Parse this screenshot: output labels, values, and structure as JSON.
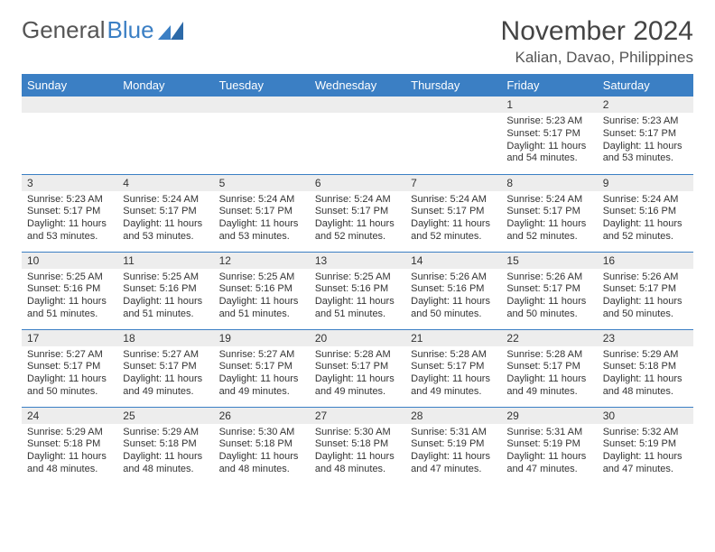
{
  "logo": {
    "text1": "General",
    "text2": "Blue"
  },
  "title": "November 2024",
  "location": "Kalian, Davao, Philippines",
  "colors": {
    "header_bg": "#3b7fc4",
    "header_fg": "#ffffff",
    "daynum_bg": "#ededed",
    "border": "#3b7fc4",
    "text": "#333333"
  },
  "font": {
    "body_size": 11,
    "header_size": 13,
    "title_size": 30,
    "subtitle_size": 17
  },
  "day_headers": [
    "Sunday",
    "Monday",
    "Tuesday",
    "Wednesday",
    "Thursday",
    "Friday",
    "Saturday"
  ],
  "weeks": [
    [
      {
        "num": "",
        "sunrise": "",
        "sunset": "",
        "daylight": ""
      },
      {
        "num": "",
        "sunrise": "",
        "sunset": "",
        "daylight": ""
      },
      {
        "num": "",
        "sunrise": "",
        "sunset": "",
        "daylight": ""
      },
      {
        "num": "",
        "sunrise": "",
        "sunset": "",
        "daylight": ""
      },
      {
        "num": "",
        "sunrise": "",
        "sunset": "",
        "daylight": ""
      },
      {
        "num": "1",
        "sunrise": "Sunrise: 5:23 AM",
        "sunset": "Sunset: 5:17 PM",
        "daylight": "Daylight: 11 hours and 54 minutes."
      },
      {
        "num": "2",
        "sunrise": "Sunrise: 5:23 AM",
        "sunset": "Sunset: 5:17 PM",
        "daylight": "Daylight: 11 hours and 53 minutes."
      }
    ],
    [
      {
        "num": "3",
        "sunrise": "Sunrise: 5:23 AM",
        "sunset": "Sunset: 5:17 PM",
        "daylight": "Daylight: 11 hours and 53 minutes."
      },
      {
        "num": "4",
        "sunrise": "Sunrise: 5:24 AM",
        "sunset": "Sunset: 5:17 PM",
        "daylight": "Daylight: 11 hours and 53 minutes."
      },
      {
        "num": "5",
        "sunrise": "Sunrise: 5:24 AM",
        "sunset": "Sunset: 5:17 PM",
        "daylight": "Daylight: 11 hours and 53 minutes."
      },
      {
        "num": "6",
        "sunrise": "Sunrise: 5:24 AM",
        "sunset": "Sunset: 5:17 PM",
        "daylight": "Daylight: 11 hours and 52 minutes."
      },
      {
        "num": "7",
        "sunrise": "Sunrise: 5:24 AM",
        "sunset": "Sunset: 5:17 PM",
        "daylight": "Daylight: 11 hours and 52 minutes."
      },
      {
        "num": "8",
        "sunrise": "Sunrise: 5:24 AM",
        "sunset": "Sunset: 5:17 PM",
        "daylight": "Daylight: 11 hours and 52 minutes."
      },
      {
        "num": "9",
        "sunrise": "Sunrise: 5:24 AM",
        "sunset": "Sunset: 5:16 PM",
        "daylight": "Daylight: 11 hours and 52 minutes."
      }
    ],
    [
      {
        "num": "10",
        "sunrise": "Sunrise: 5:25 AM",
        "sunset": "Sunset: 5:16 PM",
        "daylight": "Daylight: 11 hours and 51 minutes."
      },
      {
        "num": "11",
        "sunrise": "Sunrise: 5:25 AM",
        "sunset": "Sunset: 5:16 PM",
        "daylight": "Daylight: 11 hours and 51 minutes."
      },
      {
        "num": "12",
        "sunrise": "Sunrise: 5:25 AM",
        "sunset": "Sunset: 5:16 PM",
        "daylight": "Daylight: 11 hours and 51 minutes."
      },
      {
        "num": "13",
        "sunrise": "Sunrise: 5:25 AM",
        "sunset": "Sunset: 5:16 PM",
        "daylight": "Daylight: 11 hours and 51 minutes."
      },
      {
        "num": "14",
        "sunrise": "Sunrise: 5:26 AM",
        "sunset": "Sunset: 5:16 PM",
        "daylight": "Daylight: 11 hours and 50 minutes."
      },
      {
        "num": "15",
        "sunrise": "Sunrise: 5:26 AM",
        "sunset": "Sunset: 5:17 PM",
        "daylight": "Daylight: 11 hours and 50 minutes."
      },
      {
        "num": "16",
        "sunrise": "Sunrise: 5:26 AM",
        "sunset": "Sunset: 5:17 PM",
        "daylight": "Daylight: 11 hours and 50 minutes."
      }
    ],
    [
      {
        "num": "17",
        "sunrise": "Sunrise: 5:27 AM",
        "sunset": "Sunset: 5:17 PM",
        "daylight": "Daylight: 11 hours and 50 minutes."
      },
      {
        "num": "18",
        "sunrise": "Sunrise: 5:27 AM",
        "sunset": "Sunset: 5:17 PM",
        "daylight": "Daylight: 11 hours and 49 minutes."
      },
      {
        "num": "19",
        "sunrise": "Sunrise: 5:27 AM",
        "sunset": "Sunset: 5:17 PM",
        "daylight": "Daylight: 11 hours and 49 minutes."
      },
      {
        "num": "20",
        "sunrise": "Sunrise: 5:28 AM",
        "sunset": "Sunset: 5:17 PM",
        "daylight": "Daylight: 11 hours and 49 minutes."
      },
      {
        "num": "21",
        "sunrise": "Sunrise: 5:28 AM",
        "sunset": "Sunset: 5:17 PM",
        "daylight": "Daylight: 11 hours and 49 minutes."
      },
      {
        "num": "22",
        "sunrise": "Sunrise: 5:28 AM",
        "sunset": "Sunset: 5:17 PM",
        "daylight": "Daylight: 11 hours and 49 minutes."
      },
      {
        "num": "23",
        "sunrise": "Sunrise: 5:29 AM",
        "sunset": "Sunset: 5:18 PM",
        "daylight": "Daylight: 11 hours and 48 minutes."
      }
    ],
    [
      {
        "num": "24",
        "sunrise": "Sunrise: 5:29 AM",
        "sunset": "Sunset: 5:18 PM",
        "daylight": "Daylight: 11 hours and 48 minutes."
      },
      {
        "num": "25",
        "sunrise": "Sunrise: 5:29 AM",
        "sunset": "Sunset: 5:18 PM",
        "daylight": "Daylight: 11 hours and 48 minutes."
      },
      {
        "num": "26",
        "sunrise": "Sunrise: 5:30 AM",
        "sunset": "Sunset: 5:18 PM",
        "daylight": "Daylight: 11 hours and 48 minutes."
      },
      {
        "num": "27",
        "sunrise": "Sunrise: 5:30 AM",
        "sunset": "Sunset: 5:18 PM",
        "daylight": "Daylight: 11 hours and 48 minutes."
      },
      {
        "num": "28",
        "sunrise": "Sunrise: 5:31 AM",
        "sunset": "Sunset: 5:19 PM",
        "daylight": "Daylight: 11 hours and 47 minutes."
      },
      {
        "num": "29",
        "sunrise": "Sunrise: 5:31 AM",
        "sunset": "Sunset: 5:19 PM",
        "daylight": "Daylight: 11 hours and 47 minutes."
      },
      {
        "num": "30",
        "sunrise": "Sunrise: 5:32 AM",
        "sunset": "Sunset: 5:19 PM",
        "daylight": "Daylight: 11 hours and 47 minutes."
      }
    ]
  ]
}
